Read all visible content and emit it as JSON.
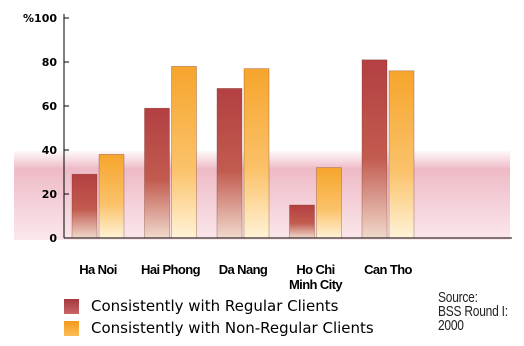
{
  "chart_data": {
    "type": "bar",
    "categories": [
      [
        "Ha Noi"
      ],
      [
        "Hai Phong"
      ],
      [
        "Da Nang"
      ],
      [
        "Ho Chi",
        "Minh City"
      ],
      [
        "Can Tho"
      ]
    ],
    "series": [
      {
        "name": "Consistently with Regular Clients",
        "values": [
          29,
          59,
          68,
          15,
          81
        ],
        "color": "#b04040"
      },
      {
        "name": "Consistently with Non-Regular Clients",
        "values": [
          38,
          78,
          77,
          32,
          76
        ],
        "color": "#f5a630"
      }
    ],
    "y_unit": "%",
    "yticks": [
      0,
      20,
      40,
      60,
      80,
      100
    ],
    "ylim": [
      0,
      100
    ],
    "grid": false,
    "legend_position": "bottom-left"
  },
  "legend": {
    "regular": "Consistently with Regular Clients",
    "non_regular": "Consistently with Non-Regular Clients"
  },
  "source": {
    "line1": "Source:",
    "line2": "BSS Round I:",
    "line3": "2000"
  }
}
